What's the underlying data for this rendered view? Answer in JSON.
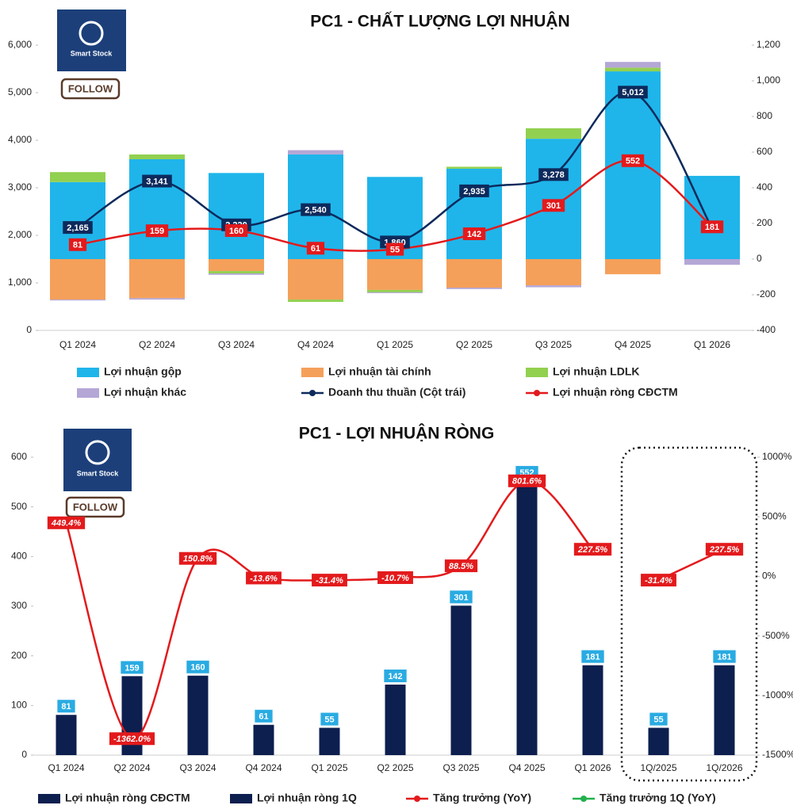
{
  "logo": {
    "name": "Smart Stock",
    "follow": "FOLLOW"
  },
  "chart_data": [
    {
      "type": "combo",
      "title": "PC1 - CHẤT LƯỢNG LỢI NHUẬN",
      "categories": [
        "Q1 2024",
        "Q2 2024",
        "Q3 2024",
        "Q4 2024",
        "Q1 2025",
        "Q2 2025",
        "Q3 2025",
        "Q4 2025",
        "Q1 2026"
      ],
      "ylim": [
        0,
        6000
      ],
      "yticks": [
        0,
        {
          "value": 1000,
          "label": "1,000"
        },
        {
          "value": 2000,
          "label": "2,000"
        },
        {
          "value": 3000,
          "label": "3,000"
        },
        {
          "value": 4000,
          "label": "4,000"
        },
        {
          "value": 5000,
          "label": "5,000"
        },
        {
          "value": 6000,
          "label": "6,000"
        }
      ],
      "y2lim": [
        -400,
        1200
      ],
      "y2ticks": [
        -400,
        -200,
        0,
        200,
        400,
        600,
        800,
        {
          "value": 1000,
          "label": "1,000"
        },
        {
          "value": 1200,
          "label": "1,200"
        }
      ],
      "stacked": true,
      "series": [
        {
          "name": "Lợi nhuận gộp",
          "kind": "bar",
          "axis": "y2",
          "color": "#1fb5ea",
          "values": [
            432,
            560,
            483,
            587,
            461,
            507,
            675,
            1053,
            467
          ]
        },
        {
          "name": "Lợi nhuận tài chính",
          "kind": "bar",
          "axis": "y2",
          "color": "#f5a05a",
          "values": [
            -227,
            -219,
            -67,
            -227,
            -173,
            -160,
            -147,
            -85,
            0
          ]
        },
        {
          "name": "Lợi nhuận LDLK",
          "kind": "bar",
          "axis": "y2",
          "color": "#92d050",
          "values": [
            56,
            27,
            -13,
            -13,
            -13,
            11,
            59,
            21,
            0
          ]
        },
        {
          "name": "Lợi nhuận khác",
          "kind": "bar",
          "axis": "y2",
          "color": "#b4a7d6",
          "values": [
            -5,
            -8,
            -8,
            24,
            -5,
            -8,
            -11,
            32,
            -32
          ]
        },
        {
          "name": "Doanh thu thuần (Cột trái)",
          "kind": "line",
          "color": "#0d2a5c",
          "markers": true,
          "label_box": "#0d2a5c",
          "values": [
            2165,
            3141,
            2220,
            2540,
            1860,
            2935,
            3278,
            5012,
            2150
          ],
          "value_labels": [
            "2,165",
            "3,141",
            "2,220",
            "2,540",
            "1,860",
            "2,935",
            "3,278",
            "5,012",
            null
          ]
        },
        {
          "name": "Lợi nhuận ròng CĐCTM",
          "kind": "line",
          "axis": "y2",
          "color": "#e31a1c",
          "markers": true,
          "label_box": "#e31a1c",
          "values": [
            81,
            159,
            160,
            61,
            55,
            142,
            301,
            552,
            181
          ]
        }
      ]
    },
    {
      "type": "combo",
      "title": "PC1 - LỢI NHUẬN RÒNG",
      "categories": [
        "Q1 2024",
        "Q2 2024",
        "Q3 2024",
        "Q4 2024",
        "Q1 2025",
        "Q2 2025",
        "Q3 2025",
        "Q4 2025",
        "Q1 2026",
        "1Q/2025",
        "1Q/2026"
      ],
      "ylim": [
        0,
        600
      ],
      "yticks": [
        0,
        100,
        200,
        300,
        400,
        500,
        600
      ],
      "y2lim": [
        -1500,
        1000
      ],
      "y2ticks": [
        {
          "value": -1500,
          "label": "-1500%"
        },
        {
          "value": -1000,
          "label": "-1000%"
        },
        {
          "value": -500,
          "label": "-500%"
        },
        {
          "value": 0,
          "label": "0%"
        },
        {
          "value": 500,
          "label": "500%"
        },
        {
          "value": 1000,
          "label": "1000%"
        }
      ],
      "stacked": false,
      "series": [
        {
          "name": "Lợi nhuận ròng CĐCTM",
          "kind": "bar",
          "color": "#0d1f4f",
          "label_box": "#29abe2",
          "values": [
            81,
            159,
            160,
            61,
            55,
            142,
            301,
            552,
            181,
            null,
            null
          ]
        },
        {
          "name": "Lợi nhuận ròng 1Q",
          "kind": "bar",
          "color": "#0d1f4f",
          "label_box": "#29abe2",
          "values": [
            null,
            null,
            null,
            null,
            null,
            null,
            null,
            null,
            null,
            55,
            181
          ]
        },
        {
          "name": "Tăng trưởng (YoY)",
          "kind": "line",
          "axis": "y2",
          "color": "#e31a1c",
          "markers": false,
          "label_box": "#e31a1c",
          "values": [
            449.4,
            -1362.0,
            150.8,
            -13.6,
            -31.4,
            -10.7,
            88.5,
            801.6,
            227.5,
            null,
            null
          ],
          "value_labels": [
            "449.4%",
            "-1362.0%",
            "150.8%",
            "-13.6%",
            "-31.4%",
            "-10.7%",
            "88.5%",
            "801.6%",
            "227.5%",
            null,
            null
          ]
        },
        {
          "name": "Tăng trưởng 1Q (YoY)",
          "kind": "line",
          "axis": "y2",
          "color": "#e31a1c",
          "legend_color": "#22b14c",
          "markers": false,
          "label_box": "#e31a1c",
          "values": [
            null,
            null,
            null,
            null,
            null,
            null,
            null,
            null,
            null,
            -31.4,
            227.5
          ],
          "value_labels": [
            null,
            null,
            null,
            null,
            null,
            null,
            null,
            null,
            null,
            "-31.4%",
            "227.5%"
          ]
        }
      ]
    }
  ]
}
